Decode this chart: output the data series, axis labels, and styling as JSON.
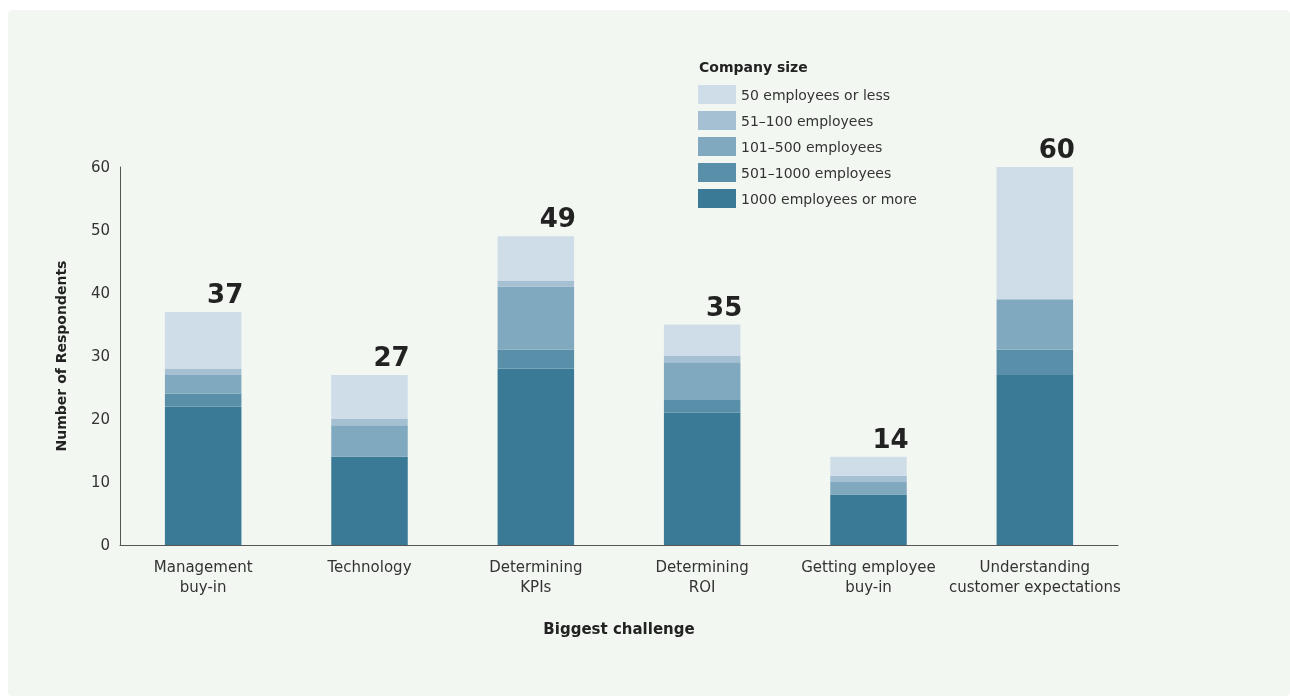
{
  "chart_data": {
    "type": "bar",
    "stacked": true,
    "xlabel": "Biggest challenge",
    "ylabel": "Number of Respondents",
    "legend_title": "Company size",
    "legend": "top right",
    "grid": false,
    "categories": [
      "Management\nbuy-in",
      "Technology",
      "Determining\nKPIs",
      "Determining\nROI",
      "Getting employee\nbuy-in",
      "Understanding\ncustomer expectations"
    ],
    "series": [
      {
        "name": "1000 employees or more",
        "color": "#3b7a96",
        "values": [
          22,
          14,
          28,
          21,
          8,
          27
        ]
      },
      {
        "name": "501–1000 employees",
        "color": "#5a8faa",
        "values": [
          2,
          0,
          3,
          2,
          0,
          4
        ]
      },
      {
        "name": "101–500 employees",
        "color": "#80a8bf",
        "values": [
          3,
          5,
          10,
          6,
          2,
          8
        ]
      },
      {
        "name": "51–100 employees",
        "color": "#a5c0d2",
        "values": [
          1,
          1,
          1,
          1,
          1,
          0
        ]
      },
      {
        "name": "50 employees or less",
        "color": "#cfdde8",
        "values": [
          9,
          7,
          7,
          5,
          3,
          21
        ]
      }
    ],
    "totals": [
      "37",
      "27",
      "49",
      "35",
      "14",
      "60"
    ],
    "ylim": [
      0,
      60
    ],
    "yticks": [
      0,
      10,
      20,
      30,
      40,
      50,
      60
    ]
  }
}
